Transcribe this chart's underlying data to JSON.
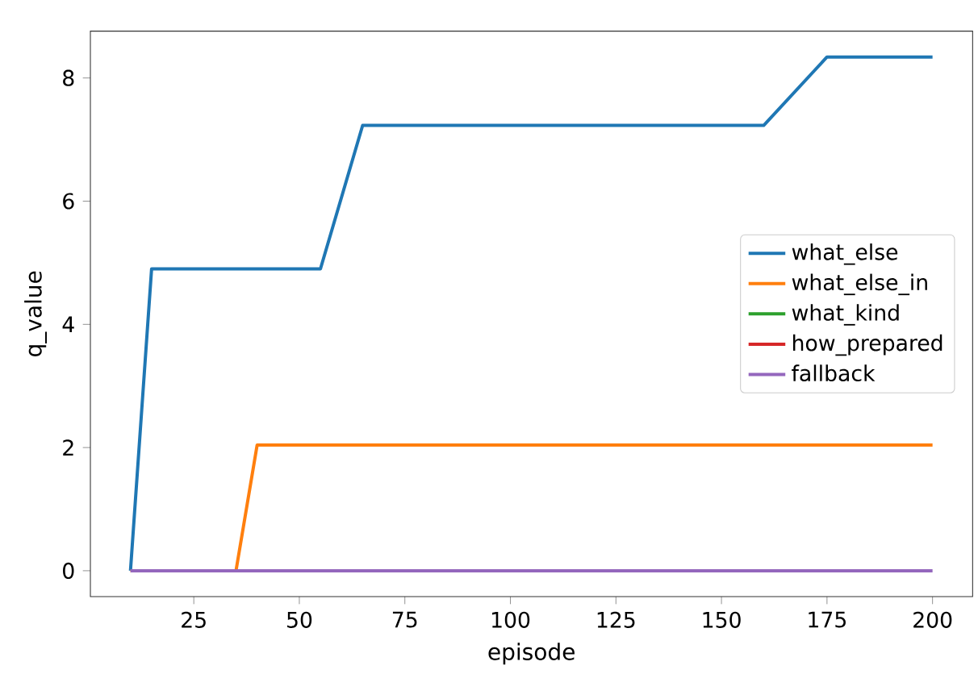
{
  "chart_data": {
    "type": "line",
    "xlabel": "episode",
    "ylabel": "q_value",
    "xlim": [
      0.5,
      209.5
    ],
    "ylim": [
      -0.42,
      8.76
    ],
    "xticks": [
      25,
      50,
      75,
      100,
      125,
      150,
      175,
      200
    ],
    "yticks": [
      0,
      2,
      4,
      6,
      8
    ],
    "grid": false,
    "legend": "right",
    "marker": "none",
    "line_style": "solid",
    "series": [
      {
        "name": "what_else",
        "color": "#1f77b4",
        "x": [
          10,
          15,
          55,
          65,
          160,
          175,
          200
        ],
        "values": [
          0,
          4.9,
          4.9,
          7.23,
          7.23,
          8.34,
          8.34
        ]
      },
      {
        "name": "what_else_in",
        "color": "#ff7f0e",
        "x": [
          10,
          35,
          40,
          200
        ],
        "values": [
          0,
          0,
          2.04,
          2.04
        ]
      },
      {
        "name": "what_kind",
        "color": "#2ca02c"
      },
      {
        "name": "how_prepared",
        "color": "#d62728"
      },
      {
        "name": "fallback",
        "color": "#9467bd",
        "x": [
          10,
          200
        ],
        "values": [
          0,
          0
        ]
      }
    ]
  }
}
